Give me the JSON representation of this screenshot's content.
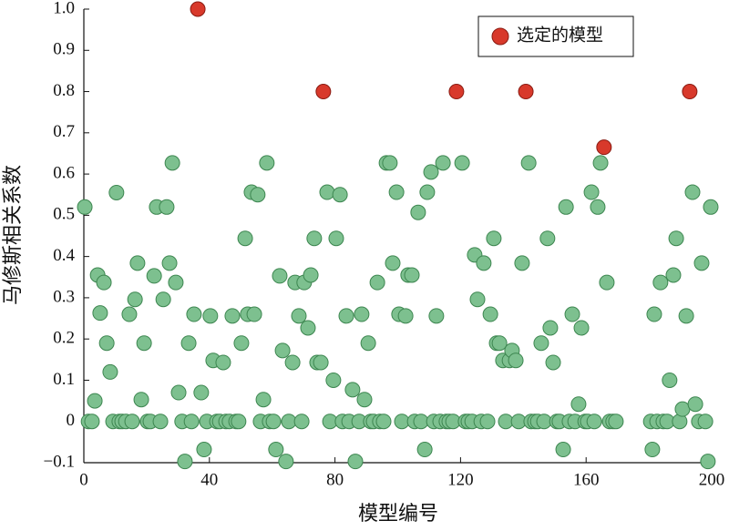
{
  "chart_data": {
    "type": "scatter",
    "xlabel": "模型编号",
    "ylabel": "马修斯相关系数",
    "xlim": [
      0,
      200
    ],
    "ylim": [
      -0.1,
      1.0
    ],
    "xticks": [
      0,
      40,
      80,
      120,
      160,
      200
    ],
    "yticks": [
      {
        "value": -0.1,
        "label": "−0.1"
      },
      0,
      0.1,
      0.2,
      0.3,
      0.4,
      0.5,
      0.6,
      0.7,
      0.8,
      0.9,
      {
        "value": 1,
        "label": "1.0"
      }
    ],
    "legend": "upper right",
    "series": [
      {
        "color": "#7dc08f",
        "x": [
          0.3,
          1.5,
          2.6,
          3.5,
          4.4,
          5.2,
          6.4,
          7.3,
          8.4,
          9.3,
          10.4,
          11.3,
          12.2,
          13.4,
          14.5,
          15.4,
          16.3,
          17.1,
          18.3,
          19.2,
          20.3,
          21.2,
          22.4,
          23.2,
          24.4,
          25.3,
          26.4,
          27.3,
          28.2,
          29.3,
          30.2,
          31.3,
          32.2,
          33.4,
          34.3,
          35.1,
          37.4,
          38.3,
          39.2,
          40.3,
          41.2,
          42.4,
          43.3,
          44.4,
          45.3,
          46.4,
          47.3,
          48.5,
          49.3,
          50.2,
          51.4,
          52.2,
          53.4,
          54.3,
          55.4,
          56.3,
          57.2,
          58.3,
          59.2,
          60.4,
          61.2,
          62.4,
          63.3,
          64.4,
          65.3,
          66.5,
          67.3,
          68.5,
          69.4,
          70.2,
          71.4,
          72.3,
          73.4,
          74.3,
          75.5,
          77.5,
          78.4,
          79.5,
          80.4,
          81.6,
          82.4,
          83.6,
          84.5,
          85.6,
          86.5,
          87.7,
          88.5,
          89.4,
          90.6,
          91.4,
          92.3,
          93.5,
          94.3,
          95.5,
          96.4,
          97.5,
          98.4,
          99.6,
          100.4,
          101.3,
          102.5,
          103.3,
          104.5,
          105.4,
          106.5,
          107.4,
          108.6,
          109.4,
          110.6,
          111.5,
          112.3,
          113.5,
          114.4,
          115.5,
          116.4,
          117.6,
          120.5,
          121.6,
          122.5,
          123.7,
          124.5,
          125.4,
          126.6,
          127.4,
          128.6,
          129.5,
          130.6,
          131.5,
          132.4,
          133.5,
          134.4,
          135.6,
          136.4,
          137.6,
          138.5,
          139.6,
          141.7,
          142.5,
          143.7,
          144.6,
          145.7,
          146.6,
          147.7,
          148.6,
          149.5,
          150.7,
          151.5,
          152.7,
          153.6,
          154.7,
          155.6,
          156.5,
          157.6,
          158.5,
          159.7,
          160.5,
          161.7,
          162.6,
          163.7,
          164.6,
          166.6,
          167.5,
          168.6,
          169.5,
          180.6,
          181.1,
          181.7,
          182.6,
          183.7,
          184.6,
          185.8,
          186.6,
          187.8,
          188.7,
          189.8,
          190.7,
          191.9,
          193.9,
          194.8,
          195.9,
          196.8,
          198,
          198.8,
          199.7
        ],
        "values": [
          0.52,
          0,
          0,
          0.05,
          0.355,
          0.263,
          0.337,
          0.19,
          0.12,
          0,
          0.555,
          0,
          0,
          0,
          0.26,
          0,
          0.296,
          0.384,
          0.053,
          0.19,
          0,
          0,
          0.353,
          0.52,
          0,
          0.296,
          0.52,
          0.384,
          0.627,
          0.337,
          0.07,
          0,
          -0.097,
          0.19,
          0,
          0.26,
          0.07,
          -0.068,
          0,
          0.256,
          0.148,
          0,
          0,
          0.143,
          0,
          0,
          0.256,
          0,
          0,
          0.19,
          0.444,
          0.26,
          0.556,
          0.26,
          0.55,
          0,
          0.053,
          0.627,
          0,
          0,
          -0.068,
          0.353,
          0.172,
          -0.097,
          0,
          0.143,
          0.337,
          0.256,
          0,
          0.337,
          0.227,
          0.355,
          0.444,
          0.143,
          0.143,
          0.556,
          0,
          0.1,
          0.444,
          0.55,
          0,
          0.256,
          0,
          0.077,
          -0.097,
          0,
          0.26,
          0.053,
          0.19,
          0,
          0,
          0.337,
          0,
          0,
          0.627,
          0.627,
          0.384,
          0.556,
          0.26,
          0,
          0.256,
          0.355,
          0.355,
          0,
          0.507,
          0,
          -0.068,
          0.556,
          0.605,
          0,
          0.256,
          0,
          0.627,
          0,
          0,
          0,
          0.627,
          0,
          0,
          0,
          0.404,
          0.296,
          0,
          0.384,
          0,
          0.26,
          0.444,
          0.19,
          0.19,
          0.148,
          0,
          0.148,
          0.172,
          0.148,
          0,
          0.384,
          0.627,
          0,
          0,
          0,
          0.19,
          0,
          0.444,
          0.227,
          0.143,
          0,
          0,
          -0.068,
          0.52,
          0,
          0.26,
          0,
          0.042,
          0.227,
          0,
          0,
          0.556,
          0,
          0.52,
          0.627,
          0.337,
          0,
          0,
          0,
          0,
          -0.068,
          0.26,
          0,
          0.337,
          0,
          0,
          0.1,
          0.355,
          0.444,
          0,
          0.03,
          0.256,
          0.556,
          0.042,
          0,
          0.384,
          0,
          -0.097,
          0.52
        ]
      },
      {
        "name": "选定的模型",
        "color": "#d8392b",
        "x": [
          36.3,
          76.3,
          118.7,
          140.8,
          165.7,
          193
        ],
        "values": [
          1.0,
          0.8,
          0.8,
          0.8,
          0.665,
          0.8
        ]
      }
    ]
  }
}
